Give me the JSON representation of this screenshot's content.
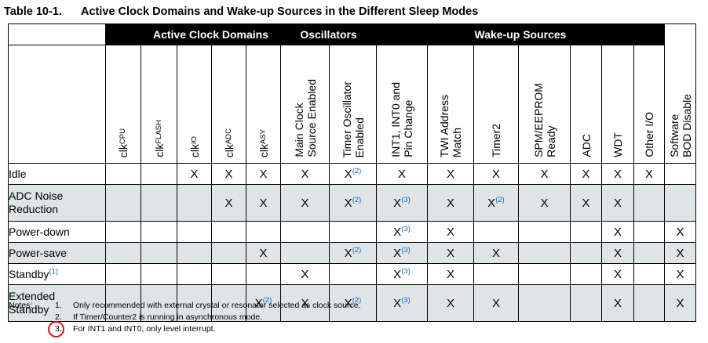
{
  "table": {
    "number": "Table 10-1.",
    "title": "Active Clock Domains and Wake-up Sources in the Different Sleep Modes",
    "groups": {
      "clock_domains": "Active Clock Domains",
      "oscillators": "Oscillators",
      "wakeup": "Wake-up Sources"
    },
    "columns": {
      "clk_cpu": {
        "base": "clk",
        "sub": "CPU"
      },
      "clk_flash": {
        "base": "clk",
        "sub": "FLASH"
      },
      "clk_io": {
        "base": "clk",
        "sub": "IO"
      },
      "clk_adc": {
        "base": "clk",
        "sub": "ADC"
      },
      "clk_asy": {
        "base": "clk",
        "sub": "ASY"
      },
      "main_clock": {
        "l1": "Main Clock",
        "l2": "Source Enabled"
      },
      "timer_osc": {
        "l1": "Timer Oscillator",
        "l2": "Enabled"
      },
      "int": {
        "l1": "INT1, INT0 and",
        "l2": "Pin Change"
      },
      "twi": {
        "l1": "TWI Address",
        "l2": "Match"
      },
      "timer2": "Timer2",
      "spm": {
        "l1": "SPM/EEPROM",
        "l2": "Ready"
      },
      "adc": "ADC",
      "wdt": "WDT",
      "other_io": "Other I/O",
      "sw_bod": {
        "l1": "Software",
        "l2": "BOD Disable"
      }
    },
    "rows": [
      {
        "mode": "Idle",
        "mode_ref": "",
        "cells": [
          "",
          "",
          "X",
          "X",
          "X",
          "X",
          "X",
          "X",
          "X",
          "X",
          "X",
          "X",
          "X",
          "X",
          ""
        ],
        "refs": [
          "",
          "",
          "",
          "",
          "",
          "",
          "(2)",
          "",
          "",
          "",
          "",
          "",
          "",
          "",
          ""
        ]
      },
      {
        "mode_l1": "ADC Noise",
        "mode_l2": "Reduction",
        "cells": [
          "",
          "",
          "",
          "X",
          "X",
          "X",
          "X",
          "X",
          "X",
          "X",
          "X",
          "X",
          "X",
          "",
          ""
        ],
        "refs": [
          "",
          "",
          "",
          "",
          "",
          "",
          "(2)",
          "(3)",
          "",
          "(2)",
          "",
          "",
          "",
          "",
          ""
        ]
      },
      {
        "mode": "Power-down",
        "mode_ref": "",
        "cells": [
          "",
          "",
          "",
          "",
          "",
          "",
          "",
          "X",
          "X",
          "",
          "",
          "",
          "X",
          "",
          "X"
        ],
        "refs": [
          "",
          "",
          "",
          "",
          "",
          "",
          "",
          "(3)",
          "",
          "",
          "",
          "",
          "",
          "",
          ""
        ]
      },
      {
        "mode": "Power-save",
        "mode_ref": "",
        "cells": [
          "",
          "",
          "",
          "",
          "X",
          "",
          "X",
          "X",
          "X",
          "X",
          "",
          "",
          "X",
          "",
          "X"
        ],
        "refs": [
          "",
          "",
          "",
          "",
          "",
          "",
          "(2)",
          "(3)",
          "",
          "",
          "",
          "",
          "",
          "",
          ""
        ]
      },
      {
        "mode": "Standby",
        "mode_ref": "(1)",
        "cells": [
          "",
          "",
          "",
          "",
          "",
          "X",
          "",
          "X",
          "X",
          "",
          "",
          "",
          "X",
          "",
          "X"
        ],
        "refs": [
          "",
          "",
          "",
          "",
          "",
          "",
          "",
          "(3)",
          "",
          "",
          "",
          "",
          "",
          "",
          ""
        ]
      },
      {
        "mode_l1": "Extended",
        "mode_l2": "Standby",
        "cells": [
          "",
          "",
          "",
          "",
          "X",
          "X",
          "X",
          "X",
          "X",
          "X",
          "",
          "",
          "X",
          "",
          "X"
        ],
        "refs": [
          "",
          "",
          "",
          "",
          "(2)",
          "",
          "(2)",
          "(3)",
          "",
          "",
          "",
          "",
          "",
          "",
          ""
        ]
      }
    ]
  },
  "notes": {
    "label": "Notes:",
    "items": [
      {
        "num": "1.",
        "text": "Only recommended with external crystal or resonator selected as clock source."
      },
      {
        "num": "2.",
        "text": "If Timer/Counter2 is running in asynchronous mode."
      },
      {
        "num": "3.",
        "text": "For INT1 and INT0, only level interrupt."
      }
    ]
  },
  "colors": {
    "header_bg": "#000000",
    "alt_row_bg": "#dfe5e6",
    "ref_color": "#1565c0",
    "highlight": "#e01010"
  }
}
